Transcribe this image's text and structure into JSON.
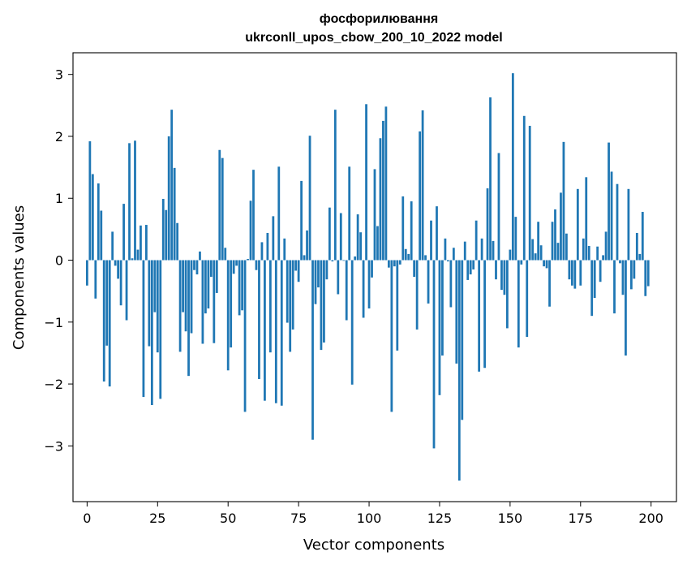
{
  "chart_data": {
    "type": "bar",
    "title": "фосфорилювання",
    "subtitle": "ukrconll_upos_cbow_200_10_2022 model",
    "xlabel": "Vector components",
    "ylabel": "Components values",
    "xlim": [
      -5,
      209
    ],
    "ylim": [
      -3.9,
      3.35
    ],
    "xticks": [
      0,
      25,
      50,
      75,
      100,
      125,
      150,
      175,
      200
    ],
    "xtick_labels": [
      "0",
      "25",
      "50",
      "75",
      "100",
      "125",
      "150",
      "175",
      "200"
    ],
    "yticks": [
      -3,
      -2,
      -1,
      0,
      1,
      2,
      3
    ],
    "ytick_labels": [
      "−3",
      "−2",
      "−1",
      "0",
      "1",
      "2",
      "3"
    ],
    "grid": false,
    "bar_color": "#1f77b4",
    "x": [
      0,
      1,
      2,
      3,
      4,
      5,
      6,
      7,
      8,
      9,
      10,
      11,
      12,
      13,
      14,
      15,
      16,
      17,
      18,
      19,
      20,
      21,
      22,
      23,
      24,
      25,
      26,
      27,
      28,
      29,
      30,
      31,
      32,
      33,
      34,
      35,
      36,
      37,
      38,
      39,
      40,
      41,
      42,
      43,
      44,
      45,
      46,
      47,
      48,
      49,
      50,
      51,
      52,
      53,
      54,
      55,
      56,
      57,
      58,
      59,
      60,
      61,
      62,
      63,
      64,
      65,
      66,
      67,
      68,
      69,
      70,
      71,
      72,
      73,
      74,
      75,
      76,
      77,
      78,
      79,
      80,
      81,
      82,
      83,
      84,
      85,
      86,
      87,
      88,
      89,
      90,
      91,
      92,
      93,
      94,
      95,
      96,
      97,
      98,
      99,
      100,
      101,
      102,
      103,
      104,
      105,
      106,
      107,
      108,
      109,
      110,
      111,
      112,
      113,
      114,
      115,
      116,
      117,
      118,
      119,
      120,
      121,
      122,
      123,
      124,
      125,
      126,
      127,
      128,
      129,
      130,
      131,
      132,
      133,
      134,
      135,
      136,
      137,
      138,
      139,
      140,
      141,
      142,
      143,
      144,
      145,
      146,
      147,
      148,
      149,
      150,
      151,
      152,
      153,
      154,
      155,
      156,
      157,
      158,
      159,
      160,
      161,
      162,
      163,
      164,
      165,
      166,
      167,
      168,
      169,
      170,
      171,
      172,
      173,
      174,
      175,
      176,
      177,
      178,
      179,
      180,
      181,
      182,
      183,
      184,
      185,
      186,
      187,
      188,
      189,
      190,
      191,
      192,
      193,
      194,
      195,
      196,
      197,
      198,
      199
    ],
    "values": [
      -0.41,
      1.92,
      1.39,
      -0.62,
      1.24,
      0.8,
      -1.96,
      -1.38,
      -2.04,
      0.46,
      -0.09,
      -0.3,
      -0.73,
      0.91,
      -0.97,
      1.89,
      0.03,
      1.93,
      0.17,
      0.56,
      -2.21,
      0.57,
      -1.39,
      -2.34,
      -0.84,
      -1.49,
      -2.24,
      0.99,
      0.81,
      2.0,
      2.43,
      1.49,
      0.6,
      -1.48,
      -0.84,
      -1.15,
      -1.87,
      -1.18,
      -0.16,
      -0.23,
      0.14,
      -1.35,
      -0.86,
      -0.78,
      -0.27,
      -1.34,
      -0.53,
      1.78,
      1.65,
      0.2,
      -1.78,
      -1.41,
      -0.22,
      -0.09,
      -0.89,
      -0.81,
      -2.45,
      0.02,
      0.96,
      1.46,
      -0.16,
      -1.92,
      0.29,
      -2.27,
      0.44,
      -1.49,
      0.71,
      -2.31,
      1.51,
      -2.35,
      0.35,
      -1.01,
      -1.48,
      -1.12,
      -0.17,
      -0.35,
      1.28,
      0.08,
      0.48,
      2.01,
      -2.9,
      -0.71,
      -0.44,
      -1.45,
      -1.33,
      -0.31,
      0.85,
      -0.02,
      2.43,
      -0.55,
      0.76,
      -0.01,
      -0.97,
      1.51,
      -2.01,
      0.06,
      0.74,
      0.45,
      -0.93,
      2.52,
      -0.78,
      -0.28,
      1.47,
      0.55,
      1.97,
      2.25,
      2.48,
      -0.12,
      -2.45,
      -0.1,
      -1.46,
      -0.07,
      1.03,
      0.18,
      0.1,
      0.95,
      -0.27,
      -1.12,
      2.08,
      2.42,
      0.08,
      -0.7,
      0.64,
      -3.04,
      0.87,
      -2.18,
      -1.54,
      0.35,
      -0.02,
      -0.76,
      0.2,
      -1.67,
      -3.56,
      -2.58,
      0.3,
      -0.32,
      -0.23,
      -0.15,
      0.64,
      -1.8,
      0.35,
      -1.74,
      1.16,
      2.63,
      0.31,
      -0.31,
      1.73,
      -0.48,
      -0.56,
      -1.1,
      0.17,
      3.02,
      0.7,
      -1.41,
      -0.07,
      2.33,
      -1.24,
      2.17,
      0.34,
      0.11,
      0.62,
      0.24,
      -0.1,
      -0.13,
      -0.75,
      0.62,
      0.82,
      0.28,
      1.09,
      1.91,
      0.43,
      -0.31,
      -0.41,
      -0.46,
      1.15,
      -0.41,
      0.35,
      1.34,
      0.23,
      -0.9,
      -0.61,
      0.22,
      -0.35,
      0.08,
      0.46,
      1.9,
      1.43,
      -0.86,
      1.23,
      -0.05,
      -0.56,
      -1.54,
      1.15,
      -0.47,
      -0.3,
      0.44,
      0.1,
      0.78,
      -0.58,
      -0.42
    ]
  }
}
